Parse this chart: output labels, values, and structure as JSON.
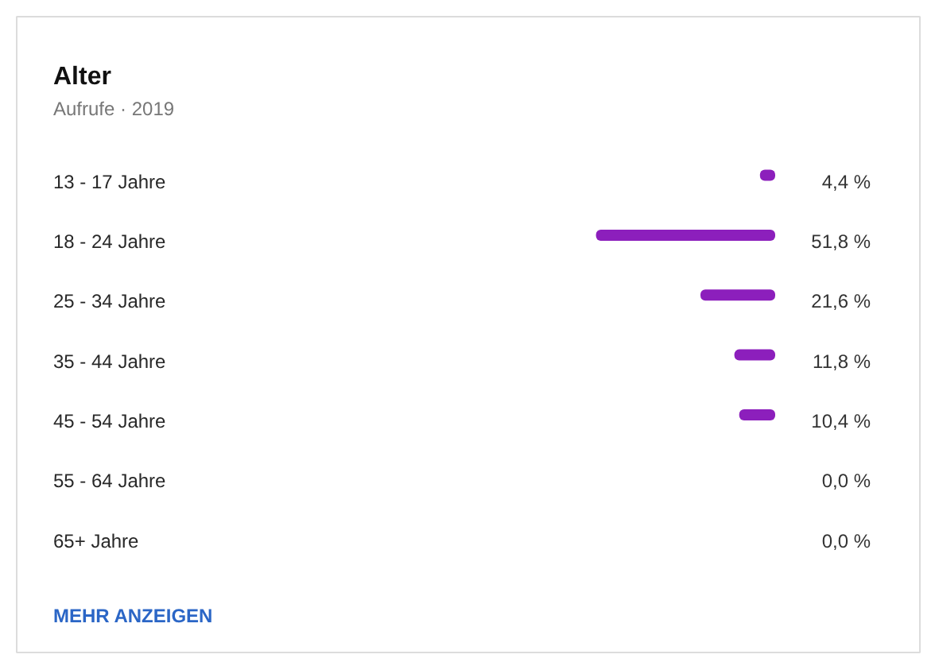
{
  "chart_data": {
    "type": "bar",
    "orientation": "horizontal",
    "title": "Alter",
    "subtitle": "Aufrufe · 2019",
    "categories": [
      "13 - 17 Jahre",
      "18 - 24 Jahre",
      "25 - 34 Jahre",
      "35 - 44 Jahre",
      "45 - 54 Jahre",
      "55 - 64 Jahre",
      "65+ Jahre"
    ],
    "values": [
      4.4,
      51.8,
      21.6,
      11.8,
      10.4,
      0.0,
      0.0
    ],
    "color": "#8c1fbc",
    "value_labels": [
      "4,4 %",
      "51,8 %",
      "21,6 %",
      "11,8 %",
      "10,4 %",
      "0,0 %",
      "0,0 %"
    ],
    "tick_labels": "y",
    "annotations": [
      "MEHR ANZEIGEN"
    ]
  }
}
